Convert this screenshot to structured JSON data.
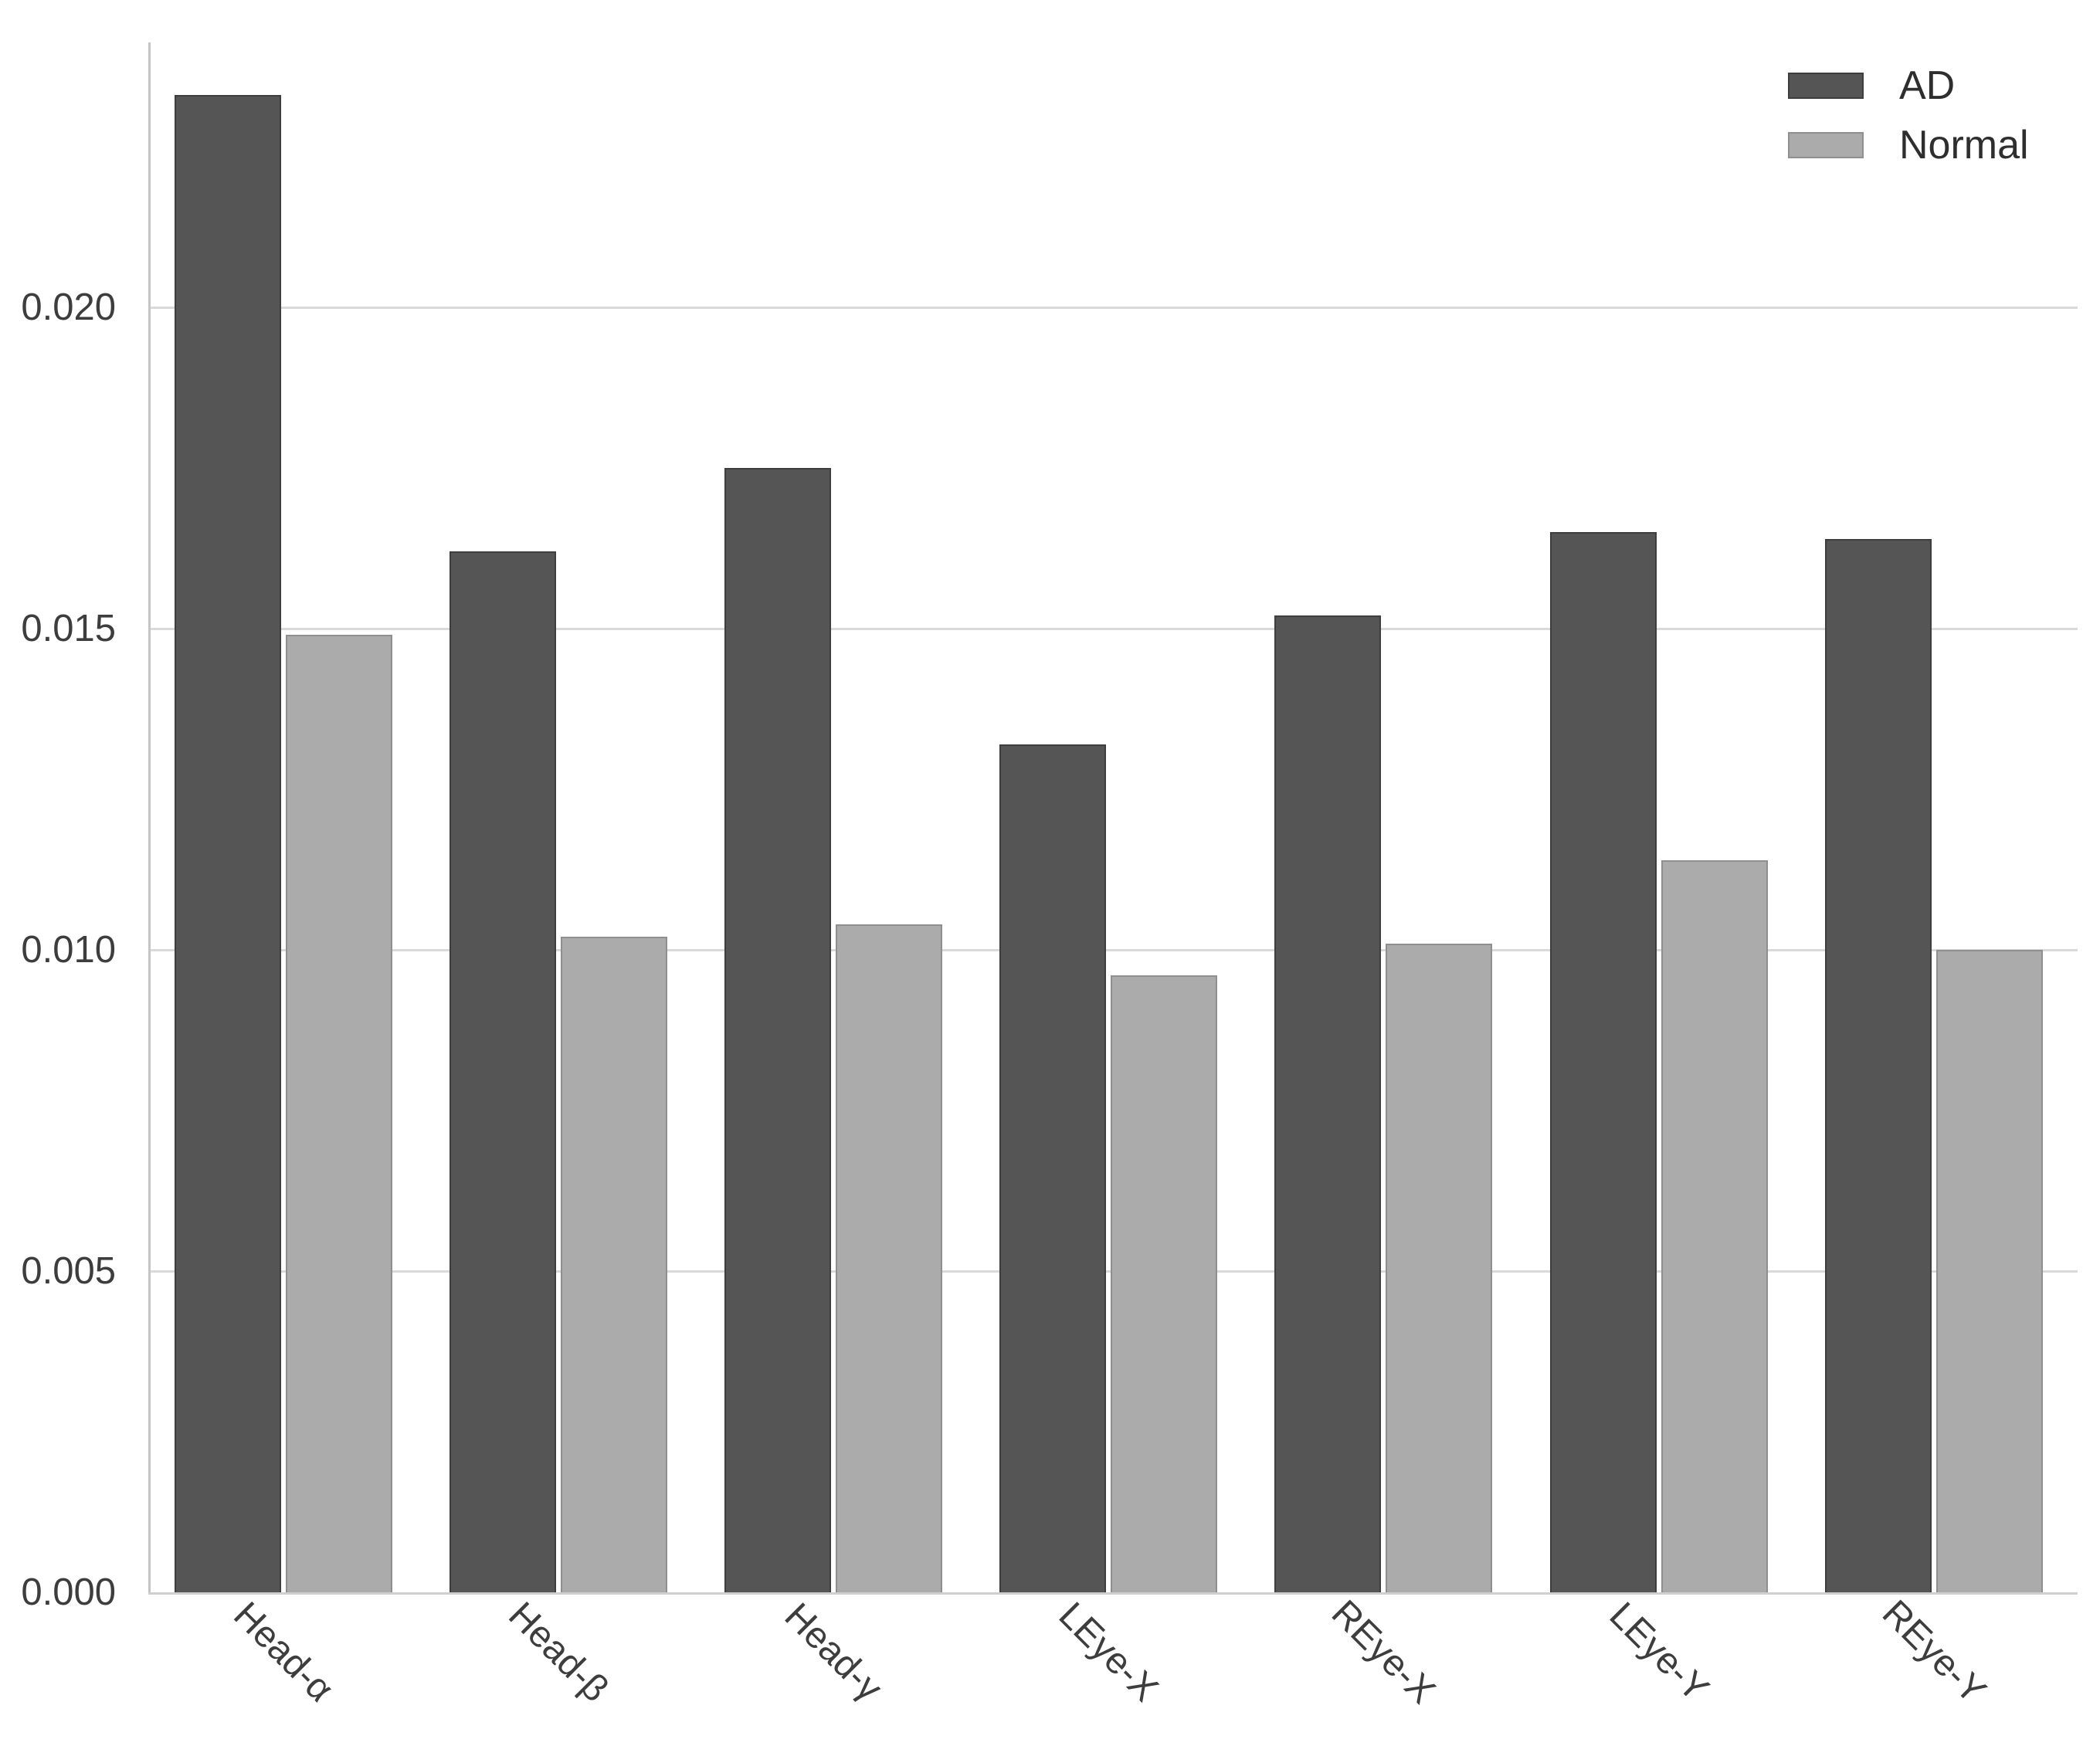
{
  "chart_data": {
    "type": "bar",
    "title": "",
    "xlabel": "",
    "ylabel": "",
    "categories": [
      "Head-α",
      "Head-β",
      "Head-γ",
      "LEye-X",
      "REye-X",
      "LEye-Y",
      "REye-Y"
    ],
    "series": [
      {
        "name": "AD",
        "color": "#555555",
        "edge_color": "#3e3e3e",
        "values": [
          0.0233,
          0.0162,
          0.0175,
          0.0132,
          0.0152,
          0.0165,
          0.0164
        ]
      },
      {
        "name": "Normal",
        "color": "#ababab",
        "edge_color": "#8f8f8f",
        "values": [
          0.0149,
          0.0102,
          0.0104,
          0.0096,
          0.0101,
          0.0114,
          0.01
        ]
      }
    ],
    "ylim": [
      0,
      0.0244
    ],
    "ytick_labels": [
      "0.000",
      "0.005",
      "0.010",
      "0.015",
      "0.020"
    ],
    "ytick_values": [
      0,
      0.005,
      0.01,
      0.015,
      0.02
    ],
    "grid": "horizontal",
    "legend_position": "upper right",
    "xtick_rotation_deg": 45
  },
  "legend": {
    "items": [
      {
        "label": "AD"
      },
      {
        "label": "Normal"
      }
    ]
  },
  "colors": {
    "background": "#ffffff",
    "gridline": "#d9d9d9",
    "spine": "#c4c4c4",
    "tick_label": "#3d3d3d"
  }
}
